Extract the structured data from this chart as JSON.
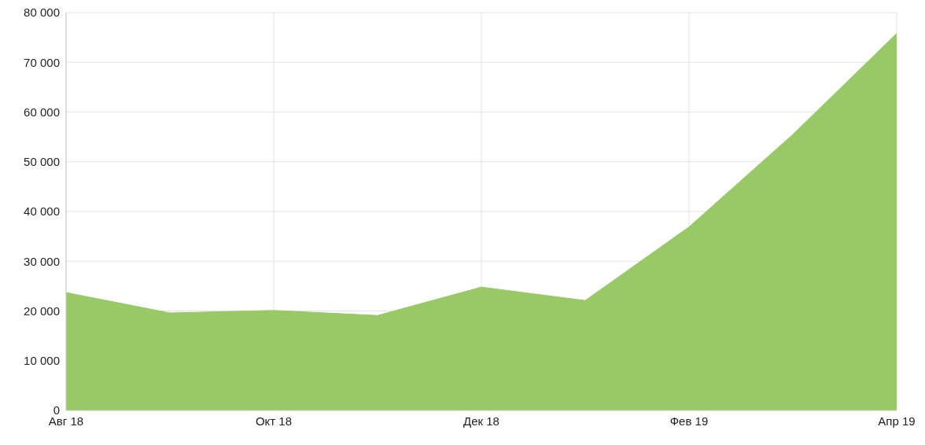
{
  "chart_data": {
    "type": "area",
    "categories": [
      "Авг 18",
      null,
      "Окт 18",
      null,
      "Дек 18",
      null,
      "Фев 19",
      null,
      "Апр 19"
    ],
    "values": [
      23700,
      19600,
      20100,
      19100,
      24800,
      22100,
      36900,
      55500,
      75800
    ],
    "color": "#99c966",
    "ylim": [
      0,
      80000
    ],
    "yticks": [
      0,
      {
        "value": 10000,
        "label": "10 000"
      },
      {
        "value": 20000,
        "label": "20 000"
      },
      {
        "value": 30000,
        "label": "30 000"
      },
      {
        "value": 40000,
        "label": "40 000"
      },
      {
        "value": 50000,
        "label": "50 000"
      },
      {
        "value": 60000,
        "label": "60 000"
      },
      {
        "value": 70000,
        "label": "70 000"
      },
      {
        "value": 80000,
        "label": "80 000"
      }
    ],
    "grid": true
  }
}
